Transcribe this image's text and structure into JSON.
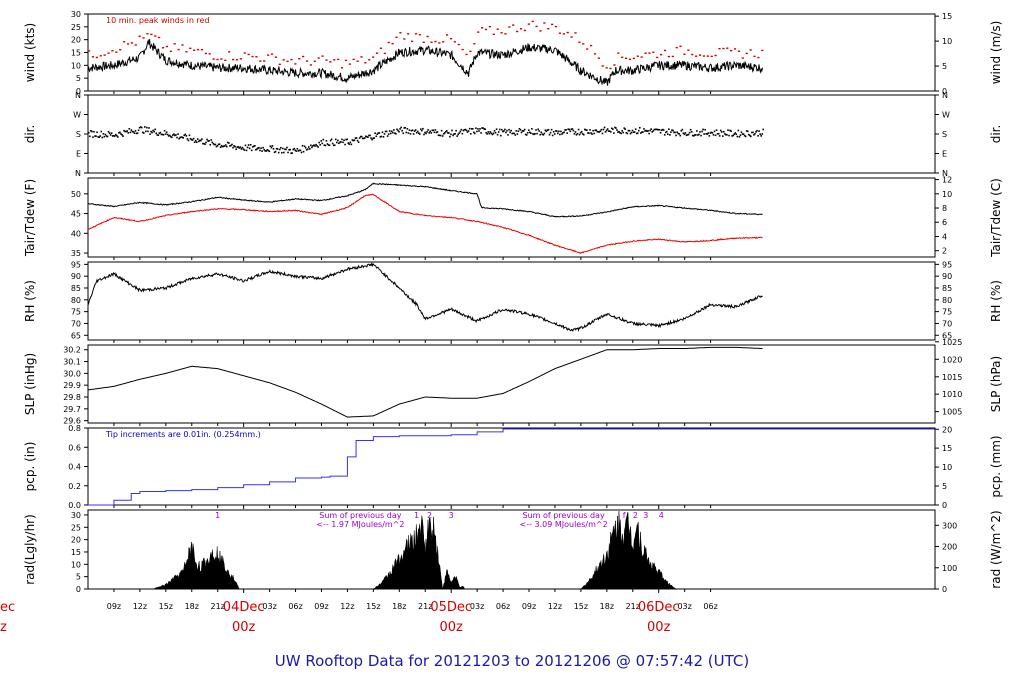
{
  "chart_data": {
    "type": "line",
    "title": "UW Rooftop Data for 20121203  to  20121206 @ 07:57:42  (UTC)",
    "x_axis": {
      "unit": "hours since 2012-12-03 06z",
      "range": [
        0,
        97.95
      ],
      "tick_labels": [
        "09z",
        "12z",
        "15z",
        "18z",
        "21z",
        "03z",
        "06z",
        "09z",
        "12z",
        "15z",
        "18z",
        "21z",
        "03z",
        "06z",
        "09z",
        "12z",
        "15z",
        "18z",
        "21z",
        "03z",
        "06z"
      ],
      "tick_hours": [
        3,
        6,
        9,
        12,
        15,
        21,
        24,
        27,
        30,
        33,
        36,
        39,
        45,
        48,
        51,
        54,
        57,
        60,
        63,
        69,
        72
      ],
      "date_labels": [
        {
          "day": "04Dec",
          "time": "00z",
          "hour": 18
        },
        {
          "day": "05Dec",
          "time": "00z",
          "hour": 42
        },
        {
          "day": "06Dec",
          "time": "00z",
          "hour": 66
        }
      ],
      "clipped_left_label": {
        "day": "ec",
        "time": "z"
      }
    },
    "panels": [
      {
        "id": "wind",
        "ylabel_left": "wind (kts)",
        "ylabel_right": "wind (m/s)",
        "ylim": [
          0,
          30
        ],
        "left_ticks": [
          "0",
          "5",
          "10",
          "15",
          "20",
          "25",
          "30"
        ],
        "left_tick_values": [
          0,
          5,
          10,
          15,
          20,
          25,
          30
        ],
        "right_ticks": [
          "0",
          "5",
          "10",
          "15"
        ],
        "right_tick_values": [
          0,
          9.72,
          19.44,
          29.16
        ],
        "annotation": "10 min. peak winds in red",
        "annotation_color": "#cc0000",
        "series": [
          {
            "name": "wind speed",
            "color": "#000000",
            "x": [
              0,
              3,
              6,
              7,
              9,
              12,
              15,
              18,
              21,
              24,
              27,
              30,
              33,
              36,
              39,
              42,
              44,
              45,
              48,
              51,
              54,
              57,
              60,
              61,
              63,
              66,
              69,
              72,
              75,
              78
            ],
            "y": [
              9,
              10,
              13,
              19,
              12,
              10,
              9,
              9,
              8,
              7,
              7,
              5,
              8,
              15,
              16,
              14,
              7,
              15,
              14,
              17,
              16,
              8,
              3,
              8,
              8,
              10,
              10,
              9,
              10,
              9
            ]
          },
          {
            "name": "10 min peak wind",
            "color": "#cc0000",
            "x": [
              0,
              3,
              6,
              7,
              9,
              12,
              15,
              18,
              21,
              24,
              27,
              30,
              33,
              36,
              39,
              42,
              44,
              45,
              48,
              51,
              54,
              57,
              60,
              61,
              63,
              66,
              69,
              72,
              75,
              78
            ],
            "y": [
              14,
              17,
              20,
              22,
              17,
              16,
              14,
              14,
              13,
              12,
              12,
              11,
              13,
              22,
              21,
              20,
              13,
              23,
              24,
              26,
              25,
              20,
              10,
              13,
              14,
              15,
              16,
              15,
              15,
              15
            ]
          }
        ]
      },
      {
        "id": "dir",
        "ylabel_left": "dir.",
        "ylabel_right": "dir.",
        "ylim": [
          0,
          360
        ],
        "left_ticks": [
          "N",
          "E",
          "S",
          "W",
          "N"
        ],
        "left_tick_values": [
          0,
          90,
          180,
          270,
          360
        ],
        "right_ticks": [
          "N",
          "E",
          "S",
          "W",
          "N"
        ],
        "right_tick_values": [
          0,
          90,
          180,
          270,
          360
        ],
        "series": [
          {
            "name": "wind direction",
            "color": "#000000",
            "style": "dots",
            "x": [
              0,
              3,
              6,
              9,
              12,
              15,
              18,
              21,
              24,
              27,
              30,
              33,
              36,
              39,
              42,
              45,
              48,
              51,
              54,
              57,
              60,
              63,
              66,
              69,
              72,
              75,
              78
            ],
            "y": [
              185,
              180,
              205,
              185,
              160,
              135,
              120,
              115,
              105,
              145,
              145,
              175,
              200,
              195,
              185,
              200,
              190,
              195,
              190,
              195,
              200,
              200,
              195,
              190,
              190,
              185,
              190
            ]
          }
        ]
      },
      {
        "id": "temp",
        "ylabel_left": "Tair/Tdew (F)",
        "ylabel_right": "Tair/Tdew (C)",
        "ylim": [
          34,
          54
        ],
        "left_ticks": [
          "35",
          "40",
          "45",
          "50"
        ],
        "left_tick_values": [
          35,
          40,
          45,
          50
        ],
        "right_ticks": [
          "2",
          "4",
          "6",
          "8",
          "10",
          "12"
        ],
        "right_tick_values": [
          35.6,
          39.2,
          42.8,
          46.4,
          50,
          53.6
        ],
        "series": [
          {
            "name": "Tair",
            "color": "#000000",
            "x": [
              0,
              3,
              6,
              9,
              12,
              15,
              18,
              21,
              24,
              27,
              30,
              32,
              33,
              36,
              39,
              42,
              45,
              45.5,
              48,
              51,
              54,
              57,
              60,
              63,
              66,
              69,
              72,
              75,
              78
            ],
            "y": [
              47.5,
              46.8,
              47.8,
              47.2,
              48.0,
              49.1,
              48.4,
              47.9,
              48.7,
              48.3,
              49.5,
              51.0,
              52.6,
              52.2,
              51.8,
              50.8,
              50.0,
              46.5,
              46.2,
              45.5,
              44.2,
              44.4,
              45.4,
              46.7,
              47.0,
              46.4,
              45.8,
              45.0,
              44.8
            ]
          },
          {
            "name": "Tdew",
            "color": "#ee0000",
            "x": [
              0,
              3,
              6,
              9,
              12,
              15,
              18,
              21,
              24,
              27,
              30,
              32,
              33,
              36,
              39,
              42,
              45,
              48,
              51,
              54,
              57,
              60,
              63,
              66,
              69,
              72,
              75,
              78
            ],
            "y": [
              41.0,
              44.0,
              43.0,
              44.5,
              45.5,
              46.2,
              46.0,
              45.5,
              45.8,
              44.8,
              46.5,
              49.5,
              49.8,
              45.5,
              44.5,
              44.0,
              43.0,
              41.5,
              39.5,
              37.0,
              35.0,
              37.0,
              38.0,
              38.5,
              37.8,
              38.2,
              38.8,
              38.9
            ]
          }
        ]
      },
      {
        "id": "rh",
        "ylabel_left": "RH (%)",
        "ylabel_right": "RH (%)",
        "ylim": [
          63,
          96
        ],
        "left_ticks": [
          "65",
          "70",
          "75",
          "80",
          "85",
          "90",
          "95"
        ],
        "left_tick_values": [
          65,
          70,
          75,
          80,
          85,
          90,
          95
        ],
        "right_ticks": [
          "65",
          "70",
          "75",
          "80",
          "85",
          "90",
          "95"
        ],
        "right_tick_values": [
          65,
          70,
          75,
          80,
          85,
          90,
          95
        ],
        "series": [
          {
            "name": "relative humidity",
            "color": "#000000",
            "x": [
              0,
              1,
              3,
              6,
              9,
              12,
              15,
              18,
              21,
              24,
              27,
              30,
              33,
              36,
              38,
              39,
              42,
              45,
              48,
              51,
              54,
              56,
              57,
              60,
              63,
              66,
              69,
              72,
              75,
              78
            ],
            "y": [
              78,
              88,
              91,
              84,
              85,
              89,
              91,
              88,
              92,
              90,
              89,
              93,
              95,
              85,
              78,
              72,
              76,
              71,
              76,
              74,
              70,
              67,
              68,
              74,
              70,
              69,
              72,
              78,
              77,
              82
            ]
          }
        ]
      },
      {
        "id": "slp",
        "ylabel_left": "SLP (inHg)",
        "ylabel_right": "SLP (hPa)",
        "ylim": [
          29.58,
          30.24
        ],
        "left_ticks": [
          "29.6",
          "29.7",
          "29.8",
          "29.9",
          "30.0",
          "30.1",
          "30.2"
        ],
        "left_tick_values": [
          29.6,
          29.7,
          29.8,
          29.9,
          30.0,
          30.1,
          30.2
        ],
        "right_ticks": [
          "1005",
          "1010",
          "1015",
          "1020",
          "1025"
        ],
        "right_tick_values": [
          29.676,
          29.824,
          29.971,
          30.119,
          30.267
        ],
        "series": [
          {
            "name": "sea level pressure",
            "color": "#000000",
            "x": [
              0,
              3,
              6,
              9,
              12,
              15,
              18,
              21,
              24,
              27,
              30,
              33,
              36,
              39,
              42,
              45,
              48,
              51,
              54,
              57,
              60,
              63,
              66,
              69,
              72,
              75,
              78
            ],
            "y": [
              29.86,
              29.89,
              29.95,
              30.0,
              30.06,
              30.04,
              29.98,
              29.92,
              29.84,
              29.74,
              29.63,
              29.64,
              29.74,
              29.8,
              29.79,
              29.79,
              29.83,
              29.93,
              30.04,
              30.12,
              30.2,
              30.2,
              30.21,
              30.21,
              30.22,
              30.22,
              30.21
            ]
          }
        ]
      },
      {
        "id": "pcp",
        "ylabel_left": "pcp. (in)",
        "ylabel_right": "pcp. (mm)",
        "ylim": [
          0,
          0.8
        ],
        "left_ticks": [
          "0.0",
          "0.2",
          "0.4",
          "0.6",
          "0.8"
        ],
        "left_tick_values": [
          0,
          0.2,
          0.4,
          0.6,
          0.8
        ],
        "right_ticks": [
          "0",
          "5",
          "10",
          "15",
          "20"
        ],
        "right_tick_values": [
          0,
          0.197,
          0.394,
          0.591,
          0.787
        ],
        "annotation": "Tip increments are 0.01in. (0.254mm.)",
        "annotation_color": "#0000cc",
        "series": [
          {
            "name": "cumulative precipitation",
            "color": "#3232ff",
            "style": "step",
            "x": [
              0,
              3,
              5,
              6,
              9,
              12,
              15,
              18,
              21,
              24,
              27,
              28,
              30,
              31,
              33,
              36,
              39,
              42,
              45,
              48,
              51,
              54,
              57,
              60,
              63,
              66,
              69,
              72,
              75,
              78
            ],
            "y": [
              0.0,
              0.05,
              0.12,
              0.14,
              0.15,
              0.16,
              0.18,
              0.21,
              0.24,
              0.28,
              0.29,
              0.3,
              0.5,
              0.67,
              0.71,
              0.72,
              0.72,
              0.73,
              0.76,
              0.79,
              0.79,
              0.79,
              0.79,
              0.79,
              0.79,
              0.79,
              0.79,
              0.79,
              0.79,
              0.79
            ]
          }
        ]
      },
      {
        "id": "rad",
        "ylabel_left": "rad(Lgly/hr)",
        "ylabel_right": "rad (W/m^2)",
        "ylim": [
          0,
          32
        ],
        "left_ticks": [
          "0",
          "5",
          "10",
          "15",
          "20",
          "25",
          "30"
        ],
        "left_tick_values": [
          0,
          5,
          10,
          15,
          20,
          25,
          30
        ],
        "right_ticks": [
          "0",
          "100",
          "200",
          "300"
        ],
        "right_tick_values": [
          0,
          8.6,
          17.2,
          25.8
        ],
        "annotations": [
          {
            "text": "Sum of previous day",
            "hour": 31.5,
            "row": 1
          },
          {
            "text": "<-- 1.97 MJoules/m^2",
            "hour": 31.5,
            "row": 2
          },
          {
            "text": "Sum of previous day",
            "hour": 55,
            "row": 1
          },
          {
            "text": "<-- 3.09 MJoules/m^2",
            "hour": 55,
            "row": 2
          }
        ],
        "annotation_color": "#9900cc",
        "markers": [
          {
            "label": "1",
            "hour": 15
          },
          {
            "label": "1",
            "hour": 38
          },
          {
            "label": "2",
            "hour": 39.5
          },
          {
            "label": "3",
            "hour": 42
          },
          {
            "label": "f",
            "hour": 62
          },
          {
            "label": "2",
            "hour": 63.3
          },
          {
            "label": "3",
            "hour": 64.5
          },
          {
            "label": "4",
            "hour": 66.3
          }
        ],
        "series": [
          {
            "name": "solar radiation",
            "color": "#000000",
            "style": "filled",
            "x": [
              7.5,
              9,
              10,
              11,
              11.5,
              12,
              12.5,
              13,
              14,
              14.5,
              15,
              16,
              17,
              17.5,
              41,
              33,
              34,
              35,
              36,
              37,
              38,
              38.5,
              39,
              39.5,
              40,
              40.5,
              41.5,
              42,
              42.5,
              43,
              57,
              58,
              59,
              60,
              60.5,
              61,
              61.5,
              62,
              62.5,
              63,
              63.5,
              64,
              65,
              66,
              67,
              68
            ],
            "y": [
              0,
              2,
              5,
              8,
              14,
              20,
              12,
              10,
              14,
              18,
              16,
              10,
              4,
              0,
              0,
              0,
              3,
              8,
              14,
              20,
              24,
              30,
              20,
              30,
              28,
              16,
              8,
              3,
              6,
              1,
              0,
              4,
              10,
              16,
              22,
              28,
              30,
              25,
              31,
              22,
              30,
              20,
              12,
              8,
              3,
              0
            ],
            "peaks": [
              {
                "start": 7.5,
                "end": 17.5
              },
              {
                "start": 33,
                "end": 43.5
              },
              {
                "start": 57,
                "end": 68.5
              }
            ]
          }
        ]
      }
    ]
  }
}
